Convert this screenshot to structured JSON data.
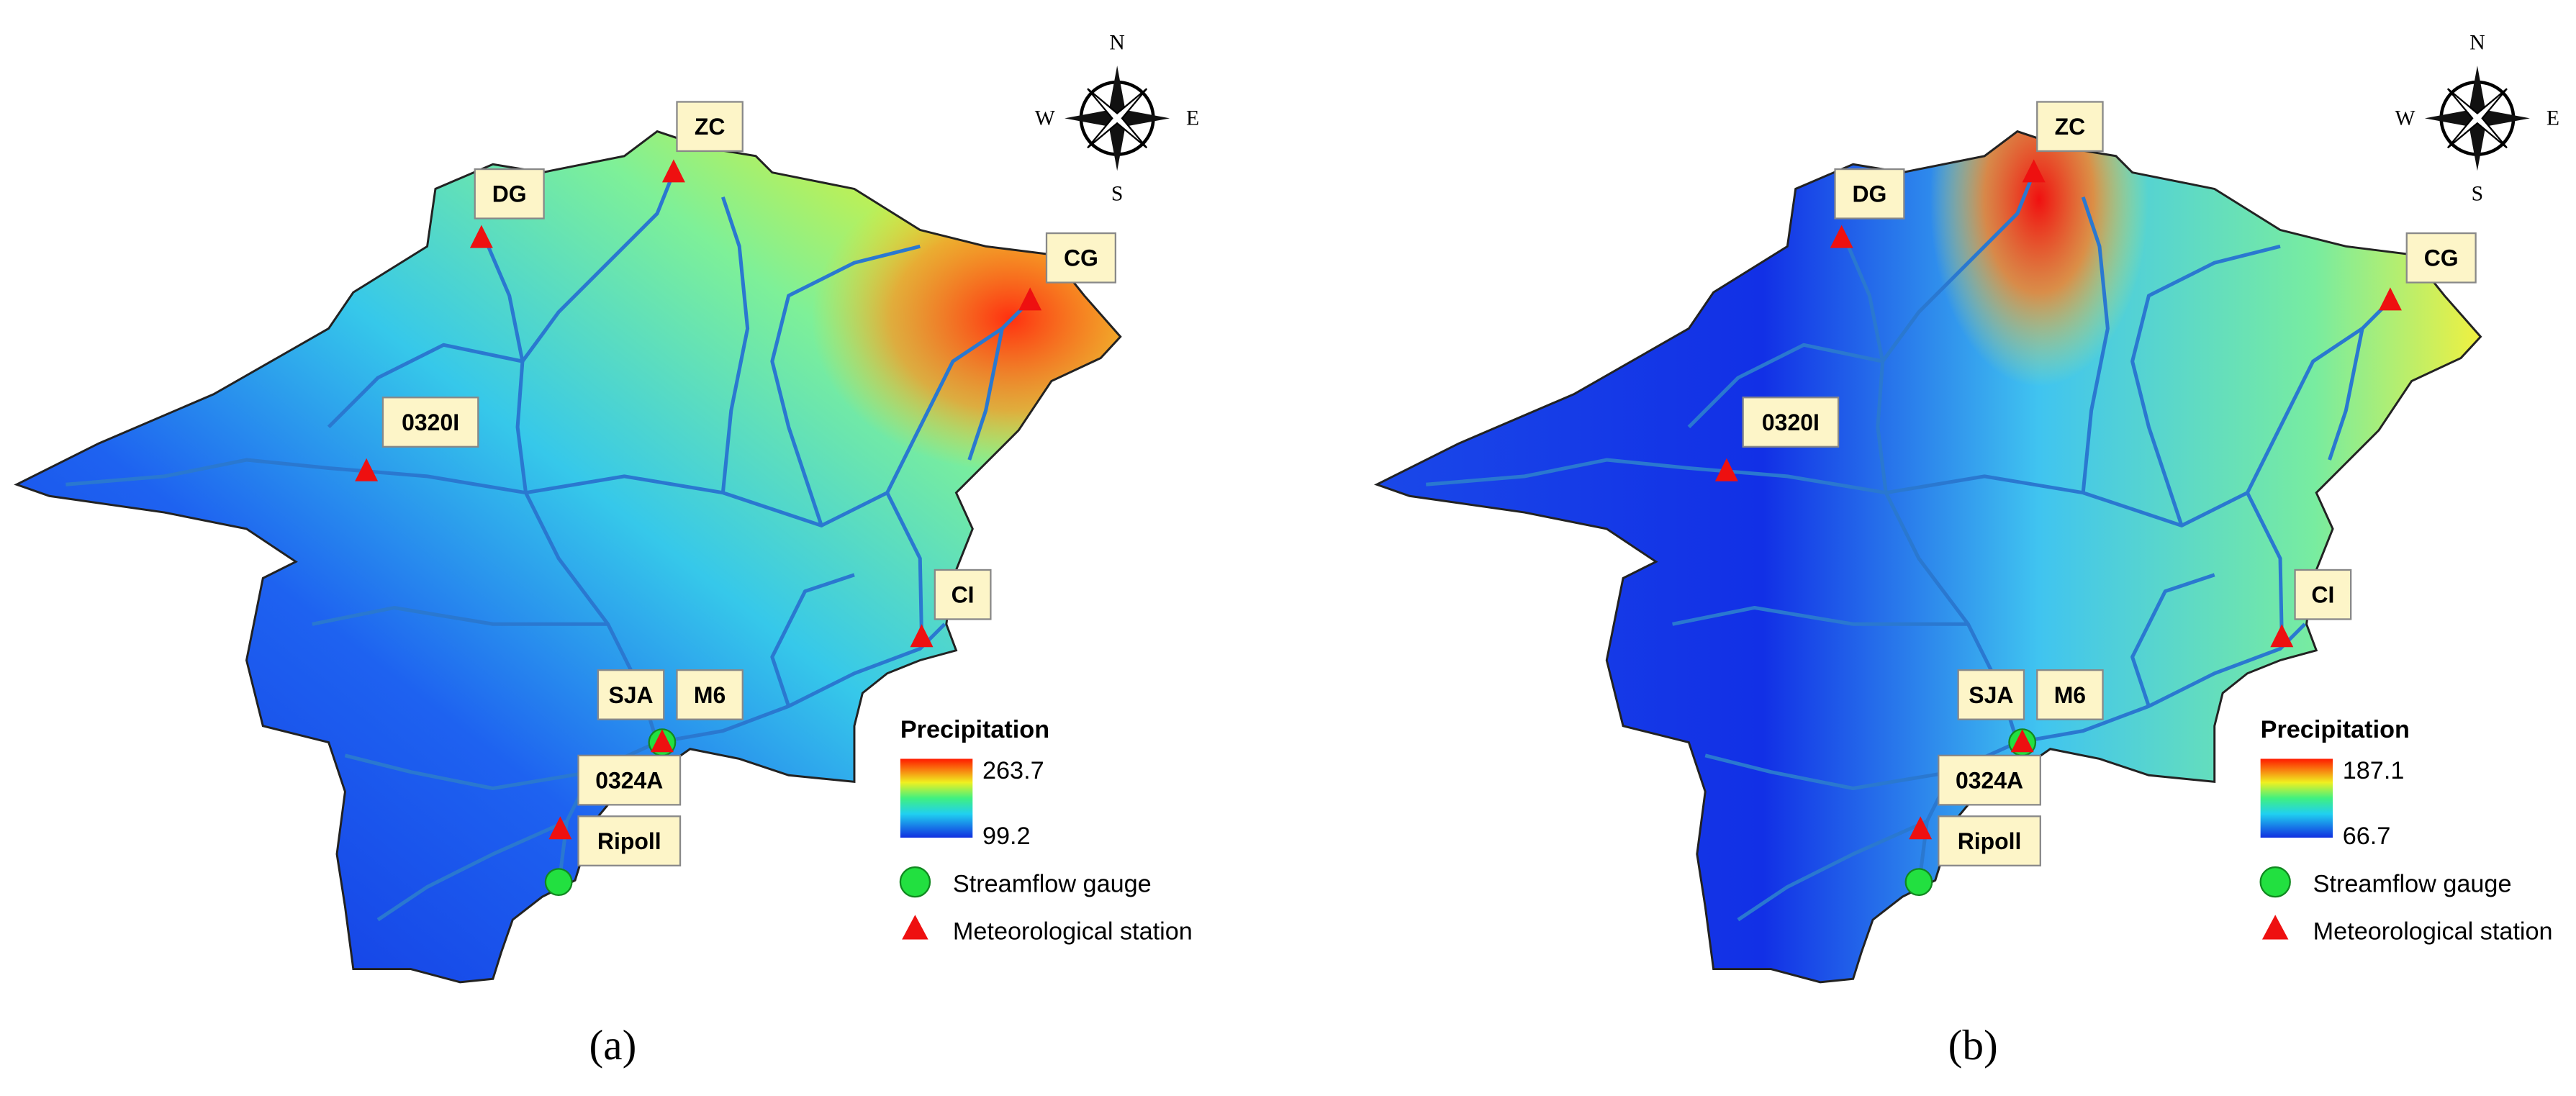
{
  "panels": [
    {
      "caption": "(a)",
      "legend": {
        "title": "Precipitation",
        "max": 263.7,
        "min": 99.2,
        "items": [
          "Streamflow gauge",
          "Meteorological station"
        ]
      },
      "stations": [
        "DG",
        "ZC",
        "CG",
        "0320I",
        "CI",
        "SJA",
        "M6",
        "0324A",
        "Ripoll"
      ],
      "compass": [
        "N",
        "S",
        "W",
        "E"
      ]
    },
    {
      "caption": "(b)",
      "legend": {
        "title": "Precipitation",
        "max": 187.1,
        "min": 66.7,
        "items": [
          "Streamflow gauge",
          "Meteorological station"
        ]
      },
      "stations": [
        "DG",
        "ZC",
        "CG",
        "0320I",
        "CI",
        "SJA",
        "M6",
        "0324A",
        "Ripoll"
      ],
      "compass": [
        "N",
        "S",
        "W",
        "E"
      ]
    }
  ]
}
